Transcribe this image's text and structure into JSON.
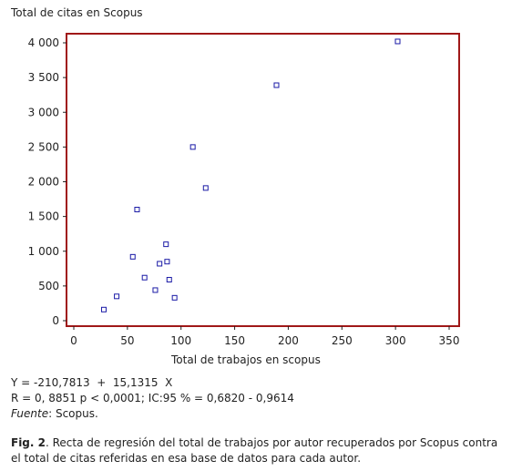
{
  "chart_data": {
    "type": "scatter",
    "ylabel": "Total de citas en Scopus",
    "xlabel": "Total de trabajos en scopus",
    "xlim": [
      0,
      350
    ],
    "ylim": [
      0,
      4000
    ],
    "x_ticks": [
      0,
      50,
      100,
      150,
      200,
      250,
      300,
      350
    ],
    "y_ticks": [
      0,
      500,
      1000,
      1500,
      2000,
      2500,
      3000,
      3500,
      4000
    ],
    "x_tick_labels": [
      "0",
      "50",
      "100",
      "150",
      "200",
      "250",
      "300",
      "350"
    ],
    "y_tick_labels": [
      "0",
      "500",
      "1 000",
      "1 500",
      "2 000",
      "2 500",
      "3 000",
      "3 500",
      "4 000"
    ],
    "grid": false,
    "colors": {
      "frame": "#a01818",
      "marker": "#1a1aa6"
    },
    "points": [
      {
        "x": 28,
        "y": 160
      },
      {
        "x": 40,
        "y": 350
      },
      {
        "x": 55,
        "y": 920
      },
      {
        "x": 59,
        "y": 1600
      },
      {
        "x": 66,
        "y": 620
      },
      {
        "x": 76,
        "y": 440
      },
      {
        "x": 80,
        "y": 820
      },
      {
        "x": 86,
        "y": 1100
      },
      {
        "x": 87,
        "y": 850
      },
      {
        "x": 89,
        "y": 590
      },
      {
        "x": 94,
        "y": 330
      },
      {
        "x": 111,
        "y": 2500
      },
      {
        "x": 123,
        "y": 1910
      },
      {
        "x": 189,
        "y": 3390
      },
      {
        "x": 302,
        "y": 4020
      }
    ]
  },
  "stats": {
    "equation": "Y = -210,7813  +  15,1315  X",
    "correlation": "R = 0, 8851 p < 0,0001; IC:95 % = 0,6820 - 0,9614",
    "source_label": "Fuente",
    "source_value": ": Scopus."
  },
  "caption": {
    "fig_label": "Fig. 2",
    "text": ". Recta de regresión del total de trabajos por autor recuperados por Scopus contra el total de citas referidas en esa base de datos para cada autor."
  }
}
